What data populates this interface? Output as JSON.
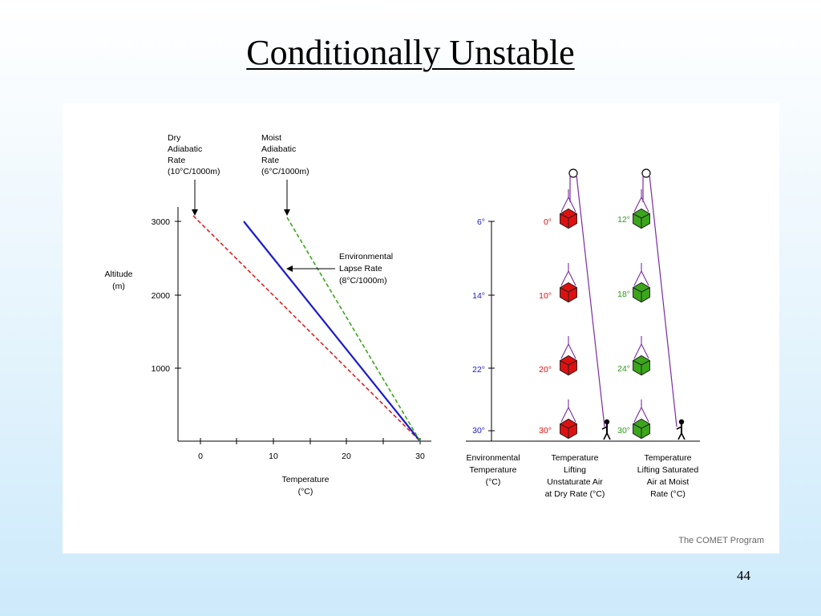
{
  "title": "Conditionally Unstable",
  "page_number": "44",
  "colors": {
    "dry": "#e02020",
    "moist": "#3aa61a",
    "env": "#1a1ad0",
    "red_parcel": "#e01010",
    "green_parcel": "#3aa61a",
    "rope": "#7a2ca0"
  },
  "labels": {
    "dry": [
      "Dry",
      "Adiabatic",
      "Rate",
      "(10°C/1000m)"
    ],
    "moist": [
      "Moist",
      "Adiabatic",
      "Rate",
      "(6°C/1000m)"
    ],
    "env": [
      "Environmental",
      "Lapse Rate",
      "(8°C/1000m)"
    ],
    "altitude": [
      "Altitude",
      "(m)"
    ],
    "temperature": [
      "Temperature",
      "(°C)"
    ],
    "env_temp_axis": [
      "Environmental",
      "Temperature",
      "(°C)"
    ],
    "dry_column": [
      "Temperature",
      "Lifting",
      "Unstaturate Air",
      "at Dry Rate (°C)"
    ],
    "moist_column": [
      "Temperature",
      "Lifting Saturated",
      "Air at Moist",
      "Rate (°C)"
    ],
    "credit": "The COMET Program"
  },
  "chart_data": {
    "type": "line",
    "xlabel": "Temperature (°C)",
    "ylabel": "Altitude (m)",
    "xticks": [
      "0",
      "10",
      "20",
      "30"
    ],
    "yticks": [
      "1000",
      "2000",
      "3000"
    ],
    "series": [
      {
        "name": "Dry Adiabatic Rate (10°C/1000m)",
        "style": "dashed",
        "points": [
          [
            0,
            3000
          ],
          [
            30,
            0
          ]
        ]
      },
      {
        "name": "Environmental Lapse Rate (8°C/1000m)",
        "style": "solid",
        "points": [
          [
            6,
            3000
          ],
          [
            30,
            0
          ]
        ]
      },
      {
        "name": "Moist Adiabatic Rate (6°C/1000m)",
        "style": "dashed",
        "points": [
          [
            12,
            3000
          ],
          [
            30,
            0
          ]
        ]
      }
    ]
  },
  "environment_temps": [
    "6°",
    "14°",
    "22°",
    "30°"
  ],
  "dry_parcel_temps": [
    "0°",
    "10°",
    "20°",
    "30°"
  ],
  "moist_parcel_temps": [
    "12°",
    "18°",
    "24°",
    "30°"
  ]
}
